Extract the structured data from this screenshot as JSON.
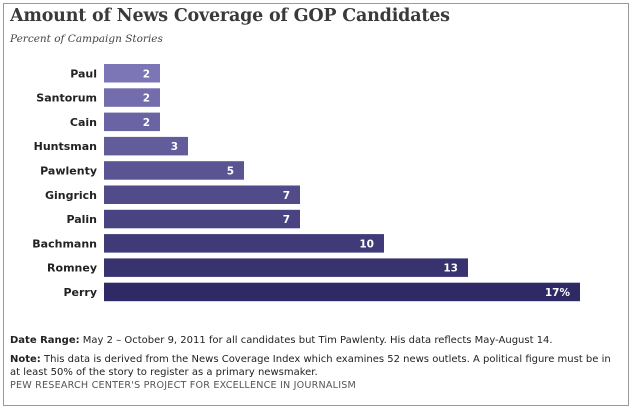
{
  "title": "Amount of News Coverage of GOP Candidates",
  "subtitle": "Percent of Campaign Stories",
  "chart_data": {
    "type": "bar",
    "orientation": "horizontal",
    "title": "Amount of News Coverage of GOP Candidates",
    "subtitle": "Percent of Campaign Stories",
    "categories": [
      "Paul",
      "Santorum",
      "Cain",
      "Huntsman",
      "Pawlenty",
      "Gingrich",
      "Palin",
      "Bachmann",
      "Romney",
      "Perry"
    ],
    "values": [
      2,
      2,
      2,
      3,
      5,
      7,
      7,
      10,
      13,
      17
    ],
    "data_labels": [
      "2",
      "2",
      "2",
      "3",
      "5",
      "7",
      "7",
      "10",
      "13",
      "17%"
    ],
    "xlim": [
      0,
      17
    ],
    "grid": false,
    "colors": {
      "bar_light": "#7c75b6",
      "bar_dark": "#2f2a66",
      "label_text": "#ffffff"
    }
  },
  "footer": {
    "date_range_label": "Date Range:",
    "date_range_text": "May 2 – October 9, 2011 for all candidates but Tim Pawlenty. His data reflects May-August 14.",
    "note_label": "Note:",
    "note_text": "This data is derived from the News Coverage Index which examines 52 news outlets. A political figure must be in at least 50% of the story to register as a primary newsmaker.",
    "credit": "PEW RESEARCH CENTER'S PROJECT FOR EXCELLENCE IN JOURNALISM"
  }
}
